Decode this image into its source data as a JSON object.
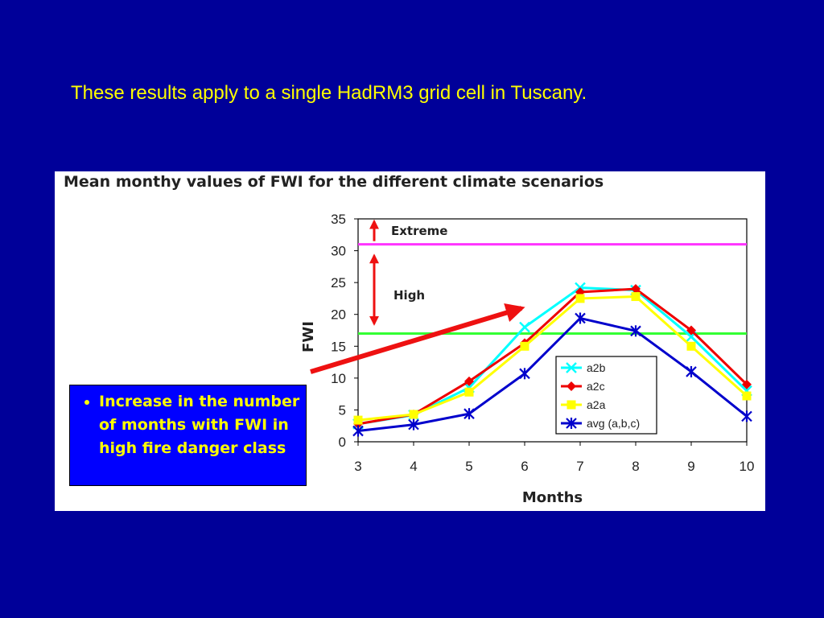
{
  "slide": {
    "subtitle": "These results apply to a single HadRM3 grid cell in Tuscany.",
    "callout_bullet": "Increase in the number of months with FWI in high fire danger class"
  },
  "colors": {
    "background": "#000099",
    "subtitle": "#ffff00",
    "callout_bg": "#0000ff",
    "extreme_line": "#ff33ff",
    "high_line": "#33ff33",
    "arrow": "#ee1111"
  },
  "chart_data": {
    "type": "line",
    "title": "Mean monthy values of FWI for the different climate scenarios",
    "xlabel": "Months",
    "ylabel": "FWI",
    "x": [
      3,
      4,
      5,
      6,
      7,
      8,
      9,
      10
    ],
    "ylim": [
      0,
      35
    ],
    "yticks": [
      0,
      5,
      10,
      15,
      20,
      25,
      30,
      35
    ],
    "grid": false,
    "legend_position": "bottom-right",
    "series": [
      {
        "name": "a2b",
        "color": "#00ffff",
        "marker": "x",
        "values": [
          2.8,
          4.2,
          8.5,
          18,
          24.2,
          23.8,
          16.5,
          8
        ]
      },
      {
        "name": "a2c",
        "color": "#ee0000",
        "marker": "diamond",
        "values": [
          2.8,
          4.3,
          9.5,
          15.5,
          23.5,
          24,
          17.5,
          9
        ]
      },
      {
        "name": "a2a",
        "color": "#ffff00",
        "marker": "square",
        "values": [
          3.4,
          4.3,
          7.8,
          15,
          22.5,
          22.8,
          15,
          7.2
        ]
      },
      {
        "name": "avg (a,b,c)",
        "color": "#0000cc",
        "marker": "star",
        "values": [
          1.7,
          2.7,
          4.4,
          10.7,
          19.4,
          17.4,
          11,
          4
        ]
      }
    ],
    "thresholds": [
      {
        "label": "Extreme",
        "value": 31,
        "color": "#ff33ff"
      },
      {
        "label": "High",
        "value": 17,
        "color": "#33ff33"
      }
    ]
  }
}
